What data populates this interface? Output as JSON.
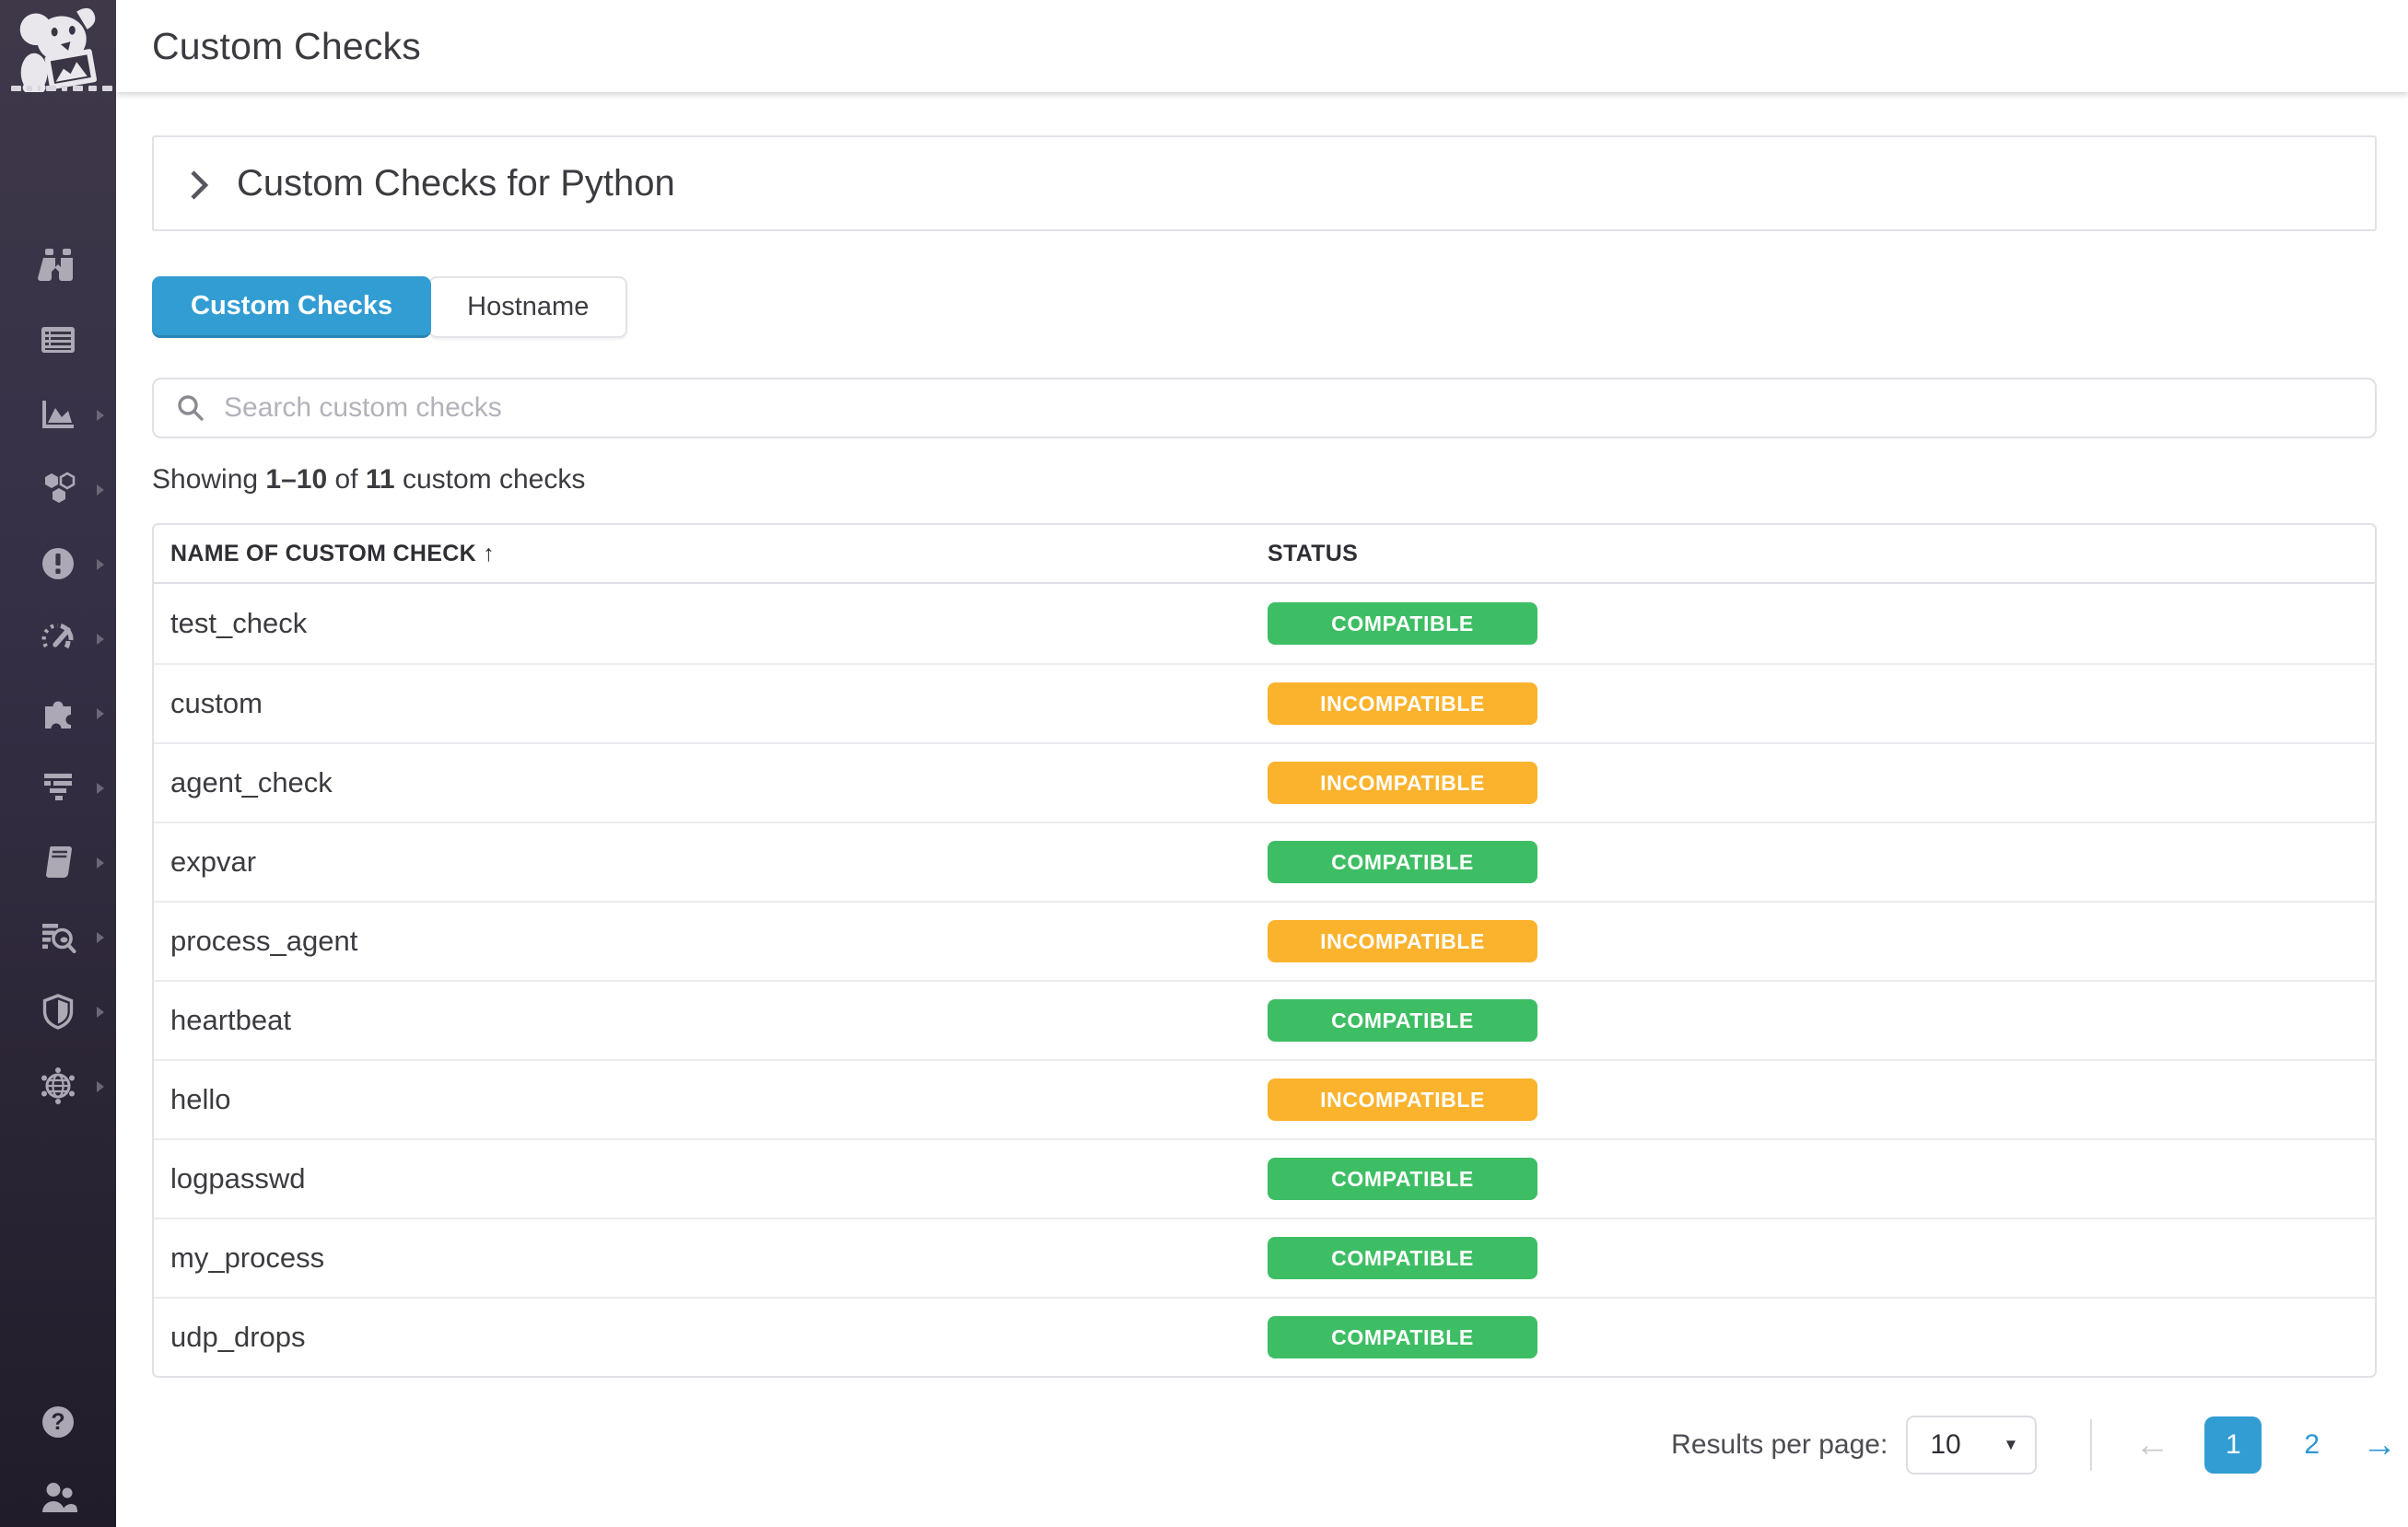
{
  "header": {
    "title": "Custom Checks"
  },
  "sidebar": {
    "logo": "datadog-dog-logo",
    "items": [
      {
        "icon": "binoculars-icon",
        "has_submenu": false
      },
      {
        "icon": "dashboards-icon",
        "has_submenu": false
      },
      {
        "icon": "metrics-chart-icon",
        "has_submenu": true
      },
      {
        "icon": "hexagons-icon",
        "has_submenu": true
      },
      {
        "icon": "alert-circle-icon",
        "has_submenu": true
      },
      {
        "icon": "gauge-icon",
        "has_submenu": true
      },
      {
        "icon": "puzzle-icon",
        "has_submenu": true
      },
      {
        "icon": "funnel-bars-icon",
        "has_submenu": true
      },
      {
        "icon": "notebook-icon",
        "has_submenu": true
      },
      {
        "icon": "log-search-icon",
        "has_submenu": true
      },
      {
        "icon": "shield-icon",
        "has_submenu": true
      },
      {
        "icon": "network-globe-icon",
        "has_submenu": true
      }
    ],
    "footer_items": [
      {
        "icon": "help-icon"
      },
      {
        "icon": "team-icon"
      }
    ]
  },
  "panel": {
    "title": "Custom Checks for Python",
    "collapse_icon": "chevron-right-icon"
  },
  "tabs": [
    {
      "label": "Custom Checks",
      "active": true
    },
    {
      "label": "Hostname",
      "active": false
    }
  ],
  "search": {
    "placeholder": "Search custom checks",
    "icon": "search-icon"
  },
  "summary": {
    "prefix": "Showing",
    "range": "1–10",
    "of": "of",
    "total": "11",
    "suffix": "custom checks"
  },
  "table": {
    "columns": [
      {
        "label": "NAME OF CUSTOM CHECK",
        "sort_indicator": "↑"
      },
      {
        "label": "STATUS"
      }
    ],
    "rows": [
      {
        "name": "test_check",
        "status": "COMPATIBLE"
      },
      {
        "name": "custom",
        "status": "INCOMPATIBLE"
      },
      {
        "name": "agent_check",
        "status": "INCOMPATIBLE"
      },
      {
        "name": "expvar",
        "status": "COMPATIBLE"
      },
      {
        "name": "process_agent",
        "status": "INCOMPATIBLE"
      },
      {
        "name": "heartbeat",
        "status": "COMPATIBLE"
      },
      {
        "name": "hello",
        "status": "INCOMPATIBLE"
      },
      {
        "name": "logpasswd",
        "status": "COMPATIBLE"
      },
      {
        "name": "my_process",
        "status": "COMPATIBLE"
      },
      {
        "name": "udp_drops",
        "status": "COMPATIBLE"
      }
    ]
  },
  "pagination": {
    "results_per_page_label": "Results per page:",
    "page_size": "10",
    "pages": [
      "1",
      "2"
    ],
    "active_page": "1",
    "prev_icon": "arrow-left-icon",
    "next_icon": "arrow-right-icon",
    "prev_glyph": "←",
    "next_glyph": "→",
    "caret_glyph": "▼"
  },
  "colors": {
    "accent_blue": "#329dd3",
    "link_blue": "#2d96d3",
    "status": {
      "COMPATIBLE": "#3ebe64",
      "INCOMPATIBLE": "#fbb32e"
    }
  }
}
